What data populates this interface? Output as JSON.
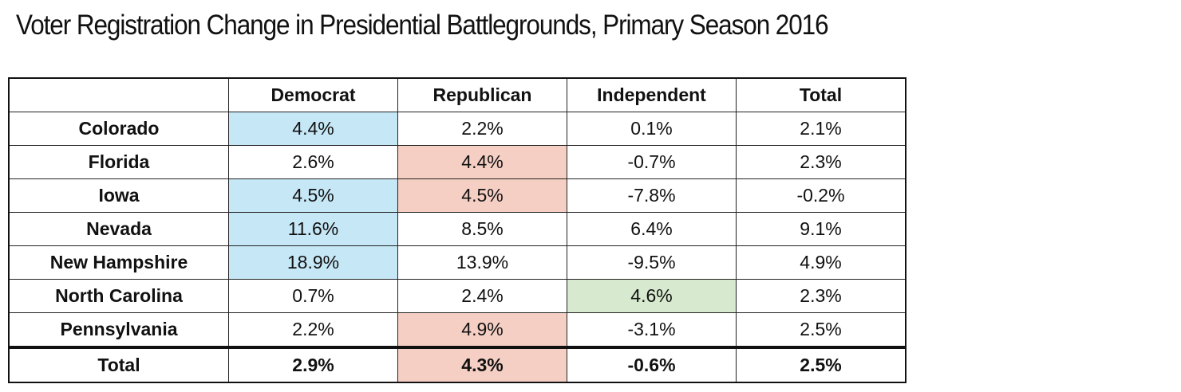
{
  "title": "Voter Registration Change in Presidential Battlegrounds, Primary Season 2016",
  "table": {
    "header": [
      "Democrat",
      "Republican",
      "Independent",
      "Total"
    ],
    "rows": [
      [
        "Colorado",
        "4.4%",
        "2.2%",
        "0.1%",
        "2.1%"
      ],
      [
        "Florida",
        "2.6%",
        "4.4%",
        "-0.7%",
        "2.3%"
      ],
      [
        "Iowa",
        "4.5%",
        "4.5%",
        "-7.8%",
        "-0.2%"
      ],
      [
        "Nevada",
        "11.6%",
        "8.5%",
        "6.4%",
        "9.1%"
      ],
      [
        "New Hampshire",
        "18.9%",
        "13.9%",
        "-9.5%",
        "4.9%"
      ],
      [
        "North Carolina",
        "0.7%",
        "2.4%",
        "4.6%",
        "2.3%"
      ],
      [
        "Pennsylvania",
        "2.2%",
        "4.9%",
        "-3.1%",
        "2.5%"
      ]
    ],
    "total": [
      "Total",
      "2.9%",
      "4.3%",
      "-0.6%",
      "2.5%"
    ]
  }
}
